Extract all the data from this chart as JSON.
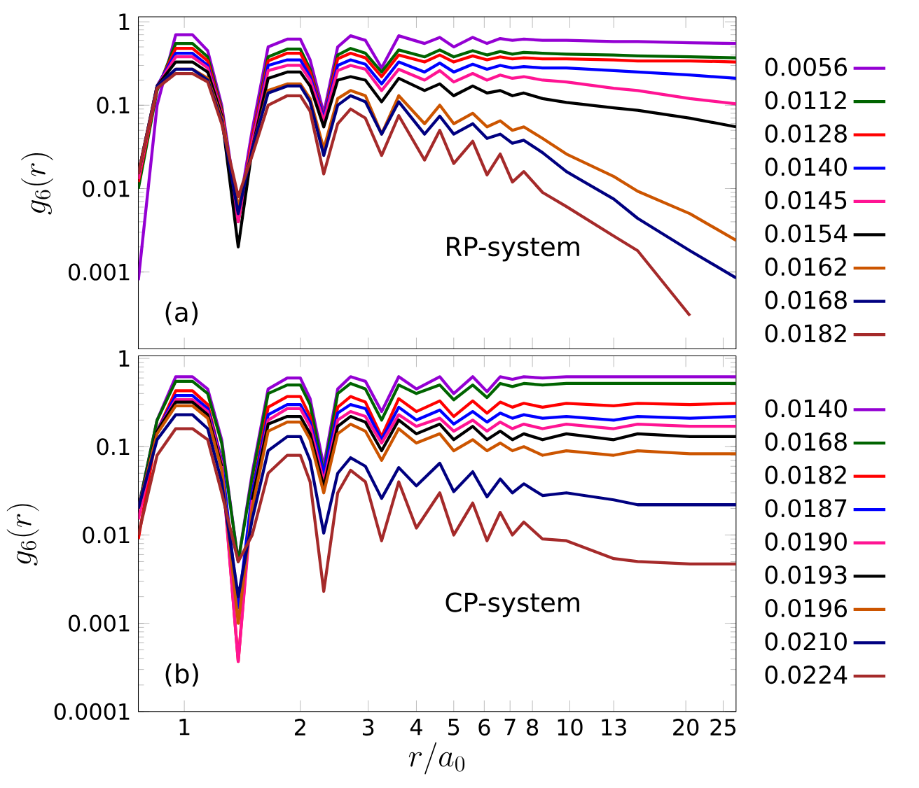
{
  "chart_data": [
    {
      "type": "line",
      "ylabel": "g_6(r)",
      "legend": "right",
      "log": "xy",
      "tick_labels": "y",
      "xlim": [
        0.76,
        27
      ],
      "ylim": [
        0.00012,
        1.15
      ],
      "xticks": [
        1,
        2,
        3,
        4,
        5,
        6,
        7,
        8,
        10,
        13,
        20,
        25
      ],
      "yticks": [
        0.001,
        0.01,
        0.1,
        1
      ],
      "annotations": [
        "RP-system",
        "(a)"
      ],
      "x": [
        0.76,
        0.85,
        0.95,
        1.05,
        1.15,
        1.25,
        1.38,
        1.5,
        1.65,
        1.85,
        2.0,
        2.12,
        2.3,
        2.5,
        2.7,
        2.95,
        3.25,
        3.6,
        4.2,
        4.6,
        5.0,
        5.6,
        6.1,
        6.6,
        7.1,
        7.6,
        8.5,
        9.8,
        13,
        15,
        20.5,
        27
      ],
      "series": [
        {
          "name": "0.0056",
          "color": "#9400d3",
          "values": [
            0.0008,
            0.1,
            0.7,
            0.7,
            0.45,
            0.1,
            0.005,
            0.05,
            0.5,
            0.62,
            0.62,
            0.35,
            0.08,
            0.5,
            0.68,
            0.6,
            0.28,
            0.68,
            0.55,
            0.65,
            0.5,
            0.65,
            0.55,
            0.63,
            0.6,
            0.62,
            0.6,
            0.6,
            0.58,
            0.58,
            0.56,
            0.55
          ]
        },
        {
          "name": "0.0112",
          "color": "#006400",
          "values": [
            0.01,
            0.15,
            0.55,
            0.55,
            0.38,
            0.09,
            0.004,
            0.04,
            0.38,
            0.47,
            0.47,
            0.27,
            0.07,
            0.4,
            0.48,
            0.42,
            0.25,
            0.46,
            0.38,
            0.46,
            0.38,
            0.45,
            0.4,
            0.44,
            0.41,
            0.43,
            0.42,
            0.41,
            0.4,
            0.39,
            0.38,
            0.37
          ]
        },
        {
          "name": "0.0128",
          "color": "#ff0000",
          "values": [
            0.012,
            0.16,
            0.48,
            0.48,
            0.34,
            0.085,
            0.004,
            0.04,
            0.34,
            0.42,
            0.42,
            0.25,
            0.07,
            0.36,
            0.42,
            0.37,
            0.22,
            0.4,
            0.33,
            0.4,
            0.33,
            0.39,
            0.35,
            0.38,
            0.36,
            0.37,
            0.36,
            0.36,
            0.35,
            0.34,
            0.34,
            0.33
          ]
        },
        {
          "name": "0.0140",
          "color": "#0000ff",
          "values": [
            null,
            0.17,
            0.42,
            0.42,
            0.3,
            0.08,
            null,
            0.035,
            0.3,
            0.35,
            0.35,
            0.22,
            0.07,
            0.3,
            0.35,
            0.31,
            0.18,
            0.33,
            0.25,
            0.32,
            0.25,
            0.31,
            0.27,
            0.3,
            0.28,
            0.29,
            0.28,
            0.28,
            0.26,
            0.25,
            0.23,
            0.21
          ]
        },
        {
          "name": "0.0145",
          "color": "#ff1493",
          "values": [
            0.013,
            0.17,
            0.38,
            0.38,
            0.28,
            0.08,
            0.004,
            0.035,
            0.26,
            0.3,
            0.3,
            0.2,
            0.065,
            0.26,
            0.3,
            0.27,
            0.15,
            0.27,
            0.2,
            0.26,
            0.19,
            0.24,
            0.2,
            0.23,
            0.21,
            0.22,
            0.2,
            0.19,
            0.16,
            0.15,
            0.12,
            0.104
          ]
        },
        {
          "name": "0.0154",
          "color": "#000000",
          "values": [
            0.015,
            0.17,
            0.33,
            0.33,
            0.25,
            0.075,
            0.002,
            0.03,
            0.21,
            0.25,
            0.25,
            0.17,
            0.055,
            0.2,
            0.22,
            0.2,
            0.11,
            0.21,
            0.15,
            0.18,
            0.13,
            0.17,
            0.14,
            0.15,
            0.13,
            0.14,
            0.12,
            0.108,
            0.093,
            0.087,
            0.07,
            0.055
          ]
        },
        {
          "name": "0.0162",
          "color": "#cc5500",
          "values": [
            0.015,
            0.17,
            0.27,
            0.27,
            0.21,
            0.07,
            0.006,
            0.03,
            0.15,
            0.18,
            0.18,
            0.12,
            0.03,
            0.12,
            0.15,
            0.13,
            0.045,
            0.13,
            0.06,
            0.1,
            0.06,
            0.08,
            0.055,
            0.065,
            0.05,
            0.055,
            0.04,
            0.026,
            0.014,
            0.0093,
            0.005,
            0.0024
          ]
        },
        {
          "name": "0.0168",
          "color": "#000080",
          "values": [
            0.015,
            0.17,
            0.27,
            0.27,
            0.2,
            0.065,
            0.005,
            0.03,
            0.14,
            0.17,
            0.17,
            0.11,
            0.025,
            0.1,
            0.13,
            0.11,
            0.045,
            0.11,
            0.045,
            0.074,
            0.045,
            0.06,
            0.04,
            0.045,
            0.035,
            0.038,
            0.027,
            0.016,
            0.0075,
            0.0044,
            0.0018,
            0.00085
          ]
        },
        {
          "name": "0.0182",
          "color": "#a52a2a",
          "values": [
            0.015,
            0.16,
            0.24,
            0.24,
            0.19,
            0.06,
            0.008,
            0.025,
            0.1,
            0.13,
            0.13,
            0.085,
            0.015,
            0.06,
            0.09,
            0.07,
            0.025,
            0.075,
            0.022,
            0.05,
            0.02,
            0.037,
            0.0146,
            0.026,
            0.012,
            0.016,
            0.009,
            0.0061,
            0.0027,
            0.0018,
            0.0003,
            null
          ]
        }
      ]
    },
    {
      "type": "line",
      "xlabel": "r/a_0",
      "ylabel": "g_6(r)",
      "legend": "right",
      "log": "xy",
      "xlim": [
        0.76,
        27
      ],
      "ylim": [
        0.0001,
        1.07
      ],
      "xticks": [
        1,
        2,
        3,
        4,
        5,
        6,
        7,
        8,
        10,
        13,
        20,
        25
      ],
      "yticks": [
        0.0001,
        0.001,
        0.01,
        0.1,
        1
      ],
      "annotations": [
        "CP-system",
        "(b)"
      ],
      "x": [
        0.76,
        0.85,
        0.95,
        1.05,
        1.15,
        1.25,
        1.38,
        1.5,
        1.65,
        1.85,
        2.0,
        2.12,
        2.3,
        2.5,
        2.7,
        2.95,
        3.25,
        3.6,
        4.0,
        4.6,
        5.0,
        5.6,
        6.1,
        6.6,
        7.1,
        7.6,
        8.5,
        9.8,
        13,
        15,
        20.5,
        27
      ],
      "series": [
        {
          "name": "0.0140",
          "color": "#9400d3",
          "values": [
            0.02,
            0.2,
            0.62,
            0.62,
            0.45,
            0.12,
            0.005,
            0.05,
            0.45,
            0.6,
            0.6,
            0.35,
            0.06,
            0.45,
            0.62,
            0.55,
            0.25,
            0.62,
            0.45,
            0.62,
            0.4,
            0.62,
            0.42,
            0.62,
            0.58,
            0.62,
            0.6,
            0.62,
            0.62,
            0.62,
            0.62,
            0.62
          ]
        },
        {
          "name": "0.0168",
          "color": "#006400",
          "values": [
            0.02,
            0.2,
            0.55,
            0.55,
            0.4,
            0.11,
            0.005,
            0.045,
            0.4,
            0.5,
            0.5,
            0.3,
            0.05,
            0.4,
            0.52,
            0.45,
            0.2,
            0.5,
            0.4,
            0.5,
            0.34,
            0.5,
            0.36,
            0.52,
            0.48,
            0.52,
            0.5,
            0.52,
            0.52,
            0.52,
            0.52,
            0.52
          ]
        },
        {
          "name": "0.0182",
          "color": "#ff0000",
          "values": [
            0.009,
            0.15,
            0.43,
            0.43,
            0.3,
            0.07,
            0.00037,
            0.03,
            0.28,
            0.37,
            0.37,
            0.22,
            0.04,
            0.28,
            0.37,
            0.32,
            0.13,
            0.35,
            0.25,
            0.33,
            0.22,
            0.33,
            0.24,
            0.32,
            0.28,
            0.31,
            0.28,
            0.31,
            0.29,
            0.31,
            0.3,
            0.31
          ]
        },
        {
          "name": "0.0187",
          "color": "#0000ff",
          "values": [
            0.02,
            0.15,
            0.38,
            0.38,
            0.27,
            0.07,
            0.0015,
            0.03,
            0.23,
            0.3,
            0.3,
            0.19,
            0.05,
            0.24,
            0.3,
            0.27,
            0.12,
            0.28,
            0.2,
            0.26,
            0.18,
            0.25,
            0.19,
            0.24,
            0.21,
            0.23,
            0.21,
            0.22,
            0.2,
            0.22,
            0.21,
            0.22
          ]
        },
        {
          "name": "0.0190",
          "color": "#ff1493",
          "values": [
            0.015,
            0.15,
            0.34,
            0.34,
            0.25,
            0.065,
            0.00037,
            0.025,
            0.2,
            0.27,
            0.27,
            0.17,
            0.04,
            0.2,
            0.25,
            0.22,
            0.11,
            0.23,
            0.17,
            0.21,
            0.15,
            0.2,
            0.15,
            0.19,
            0.16,
            0.18,
            0.16,
            0.18,
            0.16,
            0.18,
            0.17,
            0.17
          ]
        },
        {
          "name": "0.0193",
          "color": "#000000",
          "values": [
            0.02,
            0.15,
            0.32,
            0.32,
            0.23,
            0.06,
            null,
            0.025,
            0.18,
            0.22,
            0.22,
            0.14,
            0.035,
            0.17,
            0.22,
            0.19,
            0.09,
            0.2,
            0.14,
            0.18,
            0.12,
            0.17,
            0.12,
            0.15,
            0.12,
            0.14,
            0.12,
            0.14,
            0.12,
            0.14,
            0.13,
            0.13
          ]
        },
        {
          "name": "0.0196",
          "color": "#cc5500",
          "values": [
            0.02,
            0.14,
            0.29,
            0.29,
            0.21,
            0.055,
            0.001,
            0.02,
            0.15,
            0.19,
            0.19,
            0.12,
            0.03,
            0.14,
            0.18,
            0.15,
            0.07,
            0.16,
            0.11,
            0.14,
            0.09,
            0.12,
            0.09,
            0.11,
            0.09,
            0.1,
            0.08,
            0.09,
            0.08,
            0.09,
            0.083,
            0.083
          ]
        },
        {
          "name": "0.0210",
          "color": "#000080",
          "values": [
            0.02,
            0.12,
            0.23,
            0.23,
            0.16,
            0.04,
            0.002,
            0.015,
            0.09,
            0.13,
            0.13,
            0.07,
            0.0105,
            0.05,
            0.075,
            0.06,
            0.026,
            0.058,
            0.036,
            0.065,
            0.031,
            0.052,
            0.027,
            0.043,
            0.03,
            0.038,
            0.028,
            0.03,
            0.025,
            0.022,
            0.022,
            0.022
          ]
        },
        {
          "name": "0.0224",
          "color": "#a52a2a",
          "values": [
            0.01,
            0.08,
            0.16,
            0.16,
            0.12,
            0.03,
            0.005,
            0.01,
            0.05,
            0.08,
            0.08,
            0.04,
            0.0023,
            0.03,
            0.054,
            0.04,
            0.0086,
            0.04,
            0.012,
            0.03,
            0.01,
            0.023,
            0.0086,
            0.018,
            0.01,
            0.014,
            0.009,
            0.0086,
            0.0054,
            0.005,
            0.0047,
            0.0047
          ]
        }
      ]
    }
  ]
}
